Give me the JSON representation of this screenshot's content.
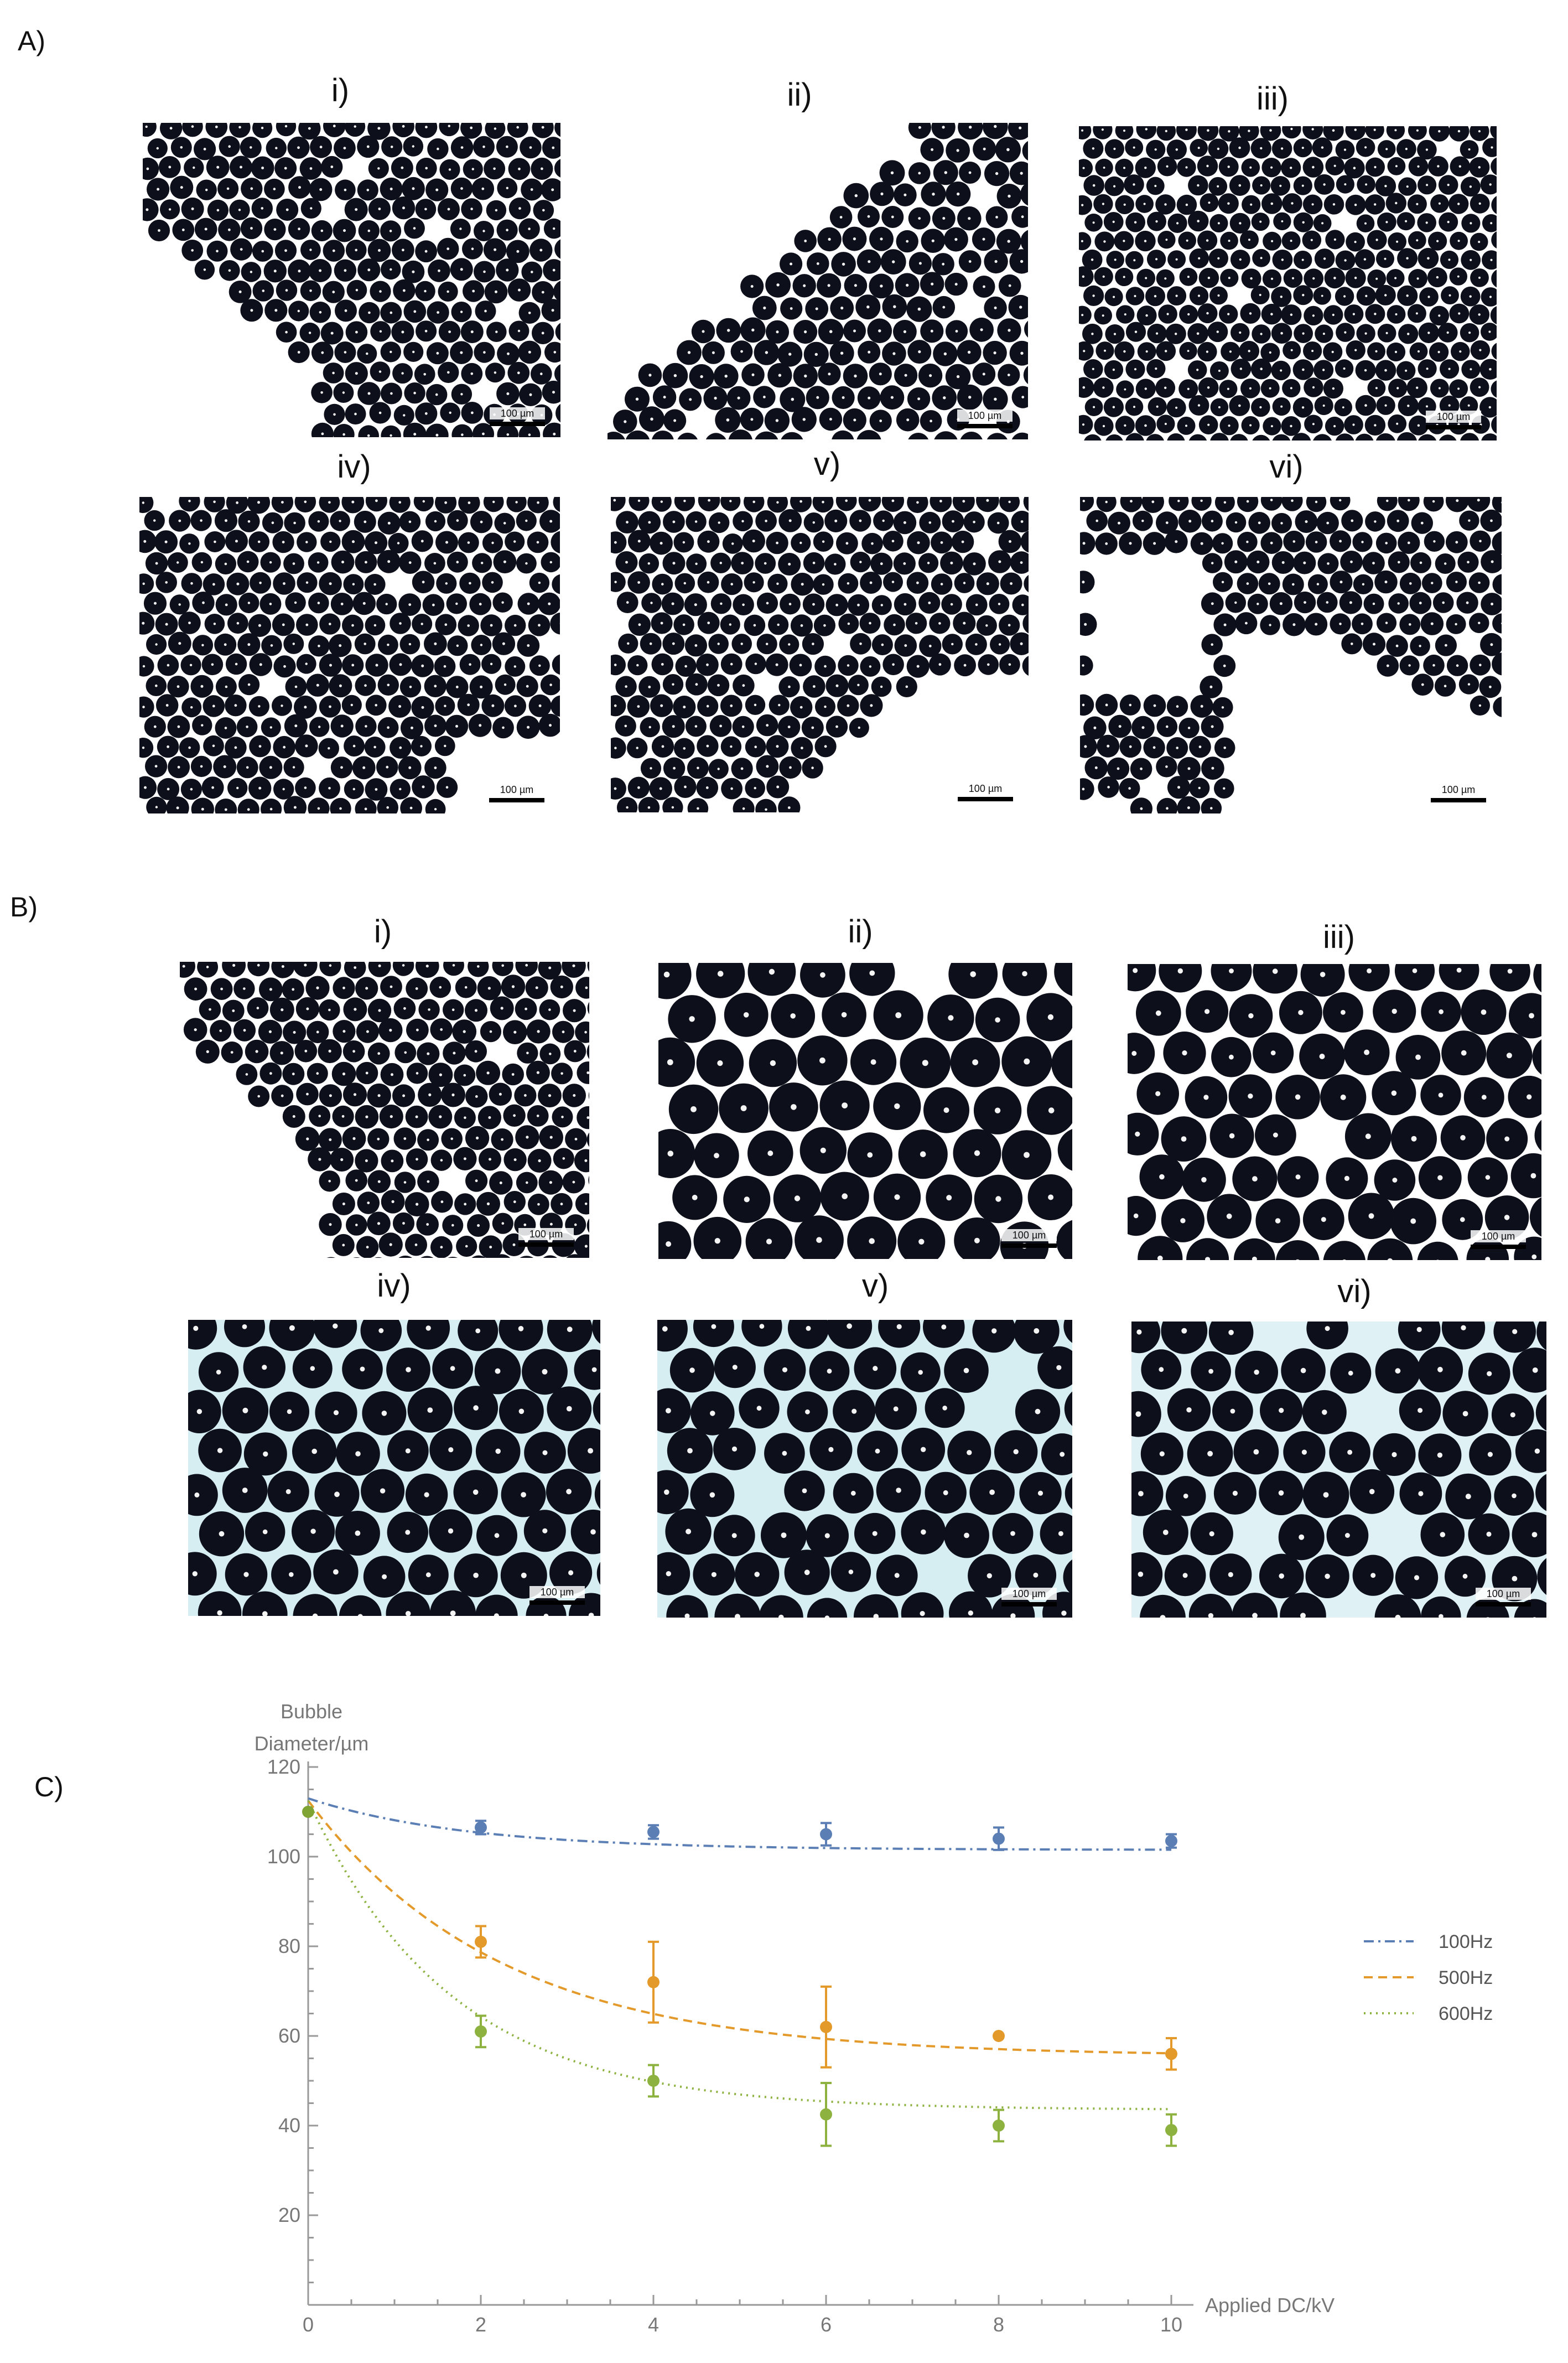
{
  "panels": {
    "A": {
      "letter": "A)",
      "images": [
        {
          "label": "i)",
          "scalebar": "100 µm",
          "style": "A-i"
        },
        {
          "label": "ii)",
          "scalebar": "100 µm",
          "style": "A-ii"
        },
        {
          "label": "iii)",
          "scalebar": "100 µm",
          "style": "A-iii"
        },
        {
          "label": "iv)",
          "scalebar": "100 µm",
          "style": "A-iv"
        },
        {
          "label": "v)",
          "scalebar": "100 µm",
          "style": "A-v"
        },
        {
          "label": "vi)",
          "scalebar": "100 µm",
          "style": "A-vi"
        }
      ]
    },
    "B": {
      "letter": "B)",
      "images": [
        {
          "label": "i)",
          "scalebar": "100 µm",
          "style": "B-i"
        },
        {
          "label": "ii)",
          "scalebar": "100 µm",
          "style": "B-ii"
        },
        {
          "label": "iii)",
          "scalebar": "100 µm",
          "style": "B-iii"
        },
        {
          "label": "iv)",
          "scalebar": "100 µm",
          "style": "B-iv"
        },
        {
          "label": "v)",
          "scalebar": "100 µm",
          "style": "B-v"
        },
        {
          "label": "vi)",
          "scalebar": "100 µm",
          "style": "B-vi"
        }
      ]
    },
    "C": {
      "letter": "C)"
    }
  },
  "chart_data": {
    "type": "scatter",
    "title": "",
    "xlabel": "Applied DC/kV",
    "ylabel_lines": [
      "Bubble",
      "Diameter/µm"
    ],
    "xlim": [
      0,
      10
    ],
    "ylim": [
      0,
      120
    ],
    "xticks": [
      0,
      2,
      4,
      6,
      8,
      10
    ],
    "yticks": [
      20,
      40,
      60,
      80,
      100,
      120
    ],
    "grid": false,
    "legend_position": "right",
    "shared_point": {
      "x": 0,
      "y": 110,
      "color": "#7fa433"
    },
    "series": [
      {
        "name": "100Hz",
        "color": "#5b7fb5",
        "dash": "dash-dot",
        "points": [
          {
            "x": 2,
            "y": 106.5,
            "err": 1.5
          },
          {
            "x": 4,
            "y": 105.5,
            "err": 1.5
          },
          {
            "x": 6,
            "y": 105,
            "err": 2.5
          },
          {
            "x": 8,
            "y": 104,
            "err": 2.5
          },
          {
            "x": 10,
            "y": 103.5,
            "err": 1.5
          }
        ],
        "fit": {
          "a": 11.5,
          "b": 101.5,
          "k": 0.55
        }
      },
      {
        "name": "500Hz",
        "color": "#e39a2a",
        "dash": "dashed",
        "points": [
          {
            "x": 2,
            "y": 81,
            "err": 3.5
          },
          {
            "x": 4,
            "y": 72,
            "err": 9
          },
          {
            "x": 6,
            "y": 62,
            "err": 9
          },
          {
            "x": 8,
            "y": 60,
            "err": 0
          },
          {
            "x": 10,
            "y": 56,
            "err": 3.5
          }
        ],
        "fit": {
          "a": 57,
          "b": 55.5,
          "k": 0.45
        }
      },
      {
        "name": "600Hz",
        "color": "#8db23f",
        "dash": "dotted",
        "points": [
          {
            "x": 2,
            "y": 61,
            "err": 3.5
          },
          {
            "x": 4,
            "y": 50,
            "err": 3.5
          },
          {
            "x": 6,
            "y": 42.5,
            "err": 7
          },
          {
            "x": 8,
            "y": 40,
            "err": 3.5
          },
          {
            "x": 10,
            "y": 39,
            "err": 3.5
          }
        ],
        "fit": {
          "a": 69,
          "b": 43.5,
          "k": 0.6
        }
      }
    ]
  }
}
